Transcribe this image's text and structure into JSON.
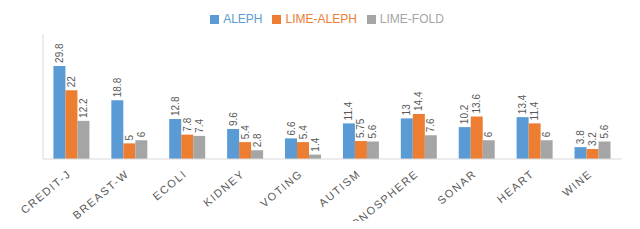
{
  "chart_data": {
    "type": "bar",
    "categories": [
      "CREDIT-J",
      "BREAST-W",
      "ECOLI",
      "KIDNEY",
      "VOTING",
      "AUTISM",
      "IONOSPHERE",
      "SONAR",
      "HEART",
      "WINE"
    ],
    "series": [
      {
        "name": "ALEPH",
        "color": "#5b9bd5",
        "values": [
          29.8,
          18.8,
          12.8,
          9.6,
          6.6,
          11.4,
          13,
          10.2,
          13.4,
          3.8
        ]
      },
      {
        "name": "LIME-ALEPH",
        "color": "#ed7d31",
        "values": [
          22,
          5,
          7.8,
          5.4,
          5.4,
          5.75,
          14.4,
          13.6,
          11.4,
          3.2
        ]
      },
      {
        "name": "LIME-FOLD",
        "color": "#a5a5a5",
        "values": [
          12.2,
          6,
          7.4,
          2.8,
          1.4,
          5.6,
          7.6,
          6,
          6,
          5.6
        ]
      }
    ],
    "ylim": [
      0,
      40
    ],
    "data_labels": true,
    "legend": "top",
    "tick_labels": "x",
    "grid": false
  }
}
